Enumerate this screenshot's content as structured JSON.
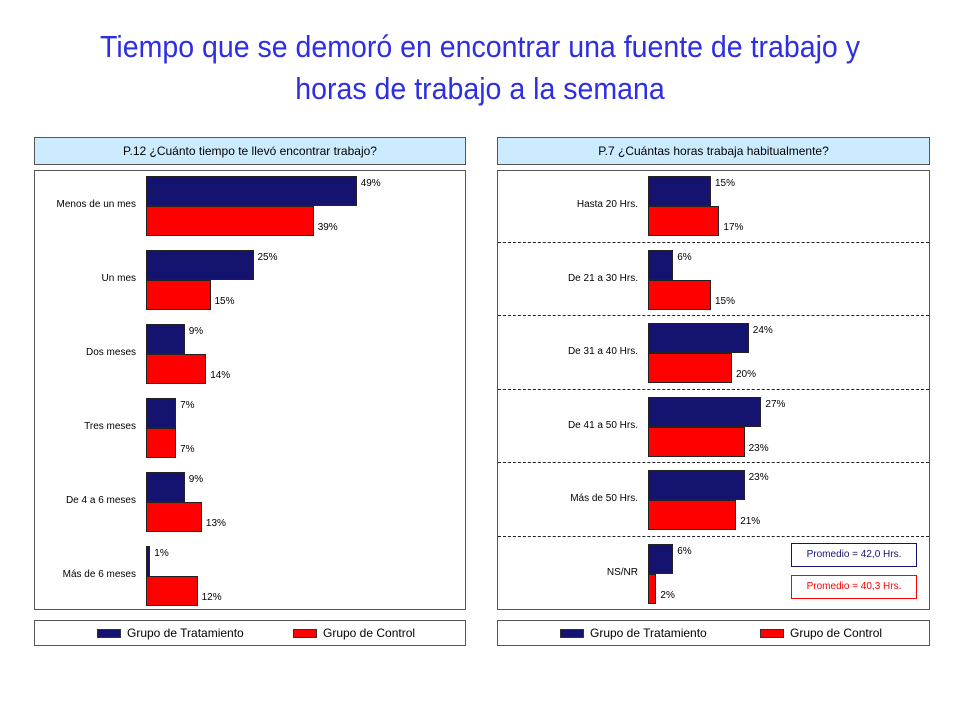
{
  "title": "Tiempo que se demoró en encontrar una fuente de trabajo y horas de trabajo a la semana",
  "colors": {
    "treatment": "#141470",
    "control": "#ff0000",
    "title": "#2e2ee6",
    "header_bg": "#ccebff"
  },
  "legend": {
    "treatment": "Grupo de Tratamiento",
    "control": "Grupo de Control"
  },
  "chart_data": [
    {
      "type": "bar",
      "orientation": "horizontal",
      "title": "P.12 ¿Cuánto tiempo te llevó encontrar trabajo?",
      "categories": [
        "Menos de un mes",
        "Un mes",
        "Dos meses",
        "Tres meses",
        "De 4 a 6 meses",
        "Más de 6 meses"
      ],
      "series": [
        {
          "name": "Grupo de Tratamiento",
          "values": [
            49,
            25,
            9,
            7,
            9,
            1
          ],
          "labels": [
            "49%",
            "25%",
            "9%",
            "7%",
            "9%",
            "1%"
          ]
        },
        {
          "name": "Grupo de Control",
          "values": [
            39,
            15,
            14,
            7,
            13,
            12
          ],
          "labels": [
            "39%",
            "15%",
            "14%",
            "7%",
            "13%",
            "12%"
          ]
        }
      ],
      "xlim": [
        0,
        100
      ],
      "legend_position": "bottom"
    },
    {
      "type": "bar",
      "orientation": "horizontal",
      "title": "P.7 ¿Cuántas horas trabaja habitualmente?",
      "categories": [
        "Hasta 20 Hrs.",
        "De 21 a 30 Hrs.",
        "De 31 a 40 Hrs.",
        "De 41 a 50 Hrs.",
        "Más de 50 Hrs.",
        "NS/NR"
      ],
      "series": [
        {
          "name": "Grupo de Tratamiento",
          "values": [
            15,
            6,
            24,
            27,
            23,
            6
          ],
          "labels": [
            "15%",
            "6%",
            "24%",
            "27%",
            "23%",
            "6%"
          ]
        },
        {
          "name": "Grupo de Control",
          "values": [
            17,
            15,
            20,
            23,
            21,
            2
          ],
          "labels": [
            "17%",
            "15%",
            "20%",
            "23%",
            "21%",
            "2%"
          ]
        }
      ],
      "xlim": [
        0,
        50
      ],
      "legend_position": "bottom",
      "annotations": [
        "Promedio = 42,0 Hrs.",
        "Promedio = 40,3 Hrs."
      ]
    }
  ]
}
